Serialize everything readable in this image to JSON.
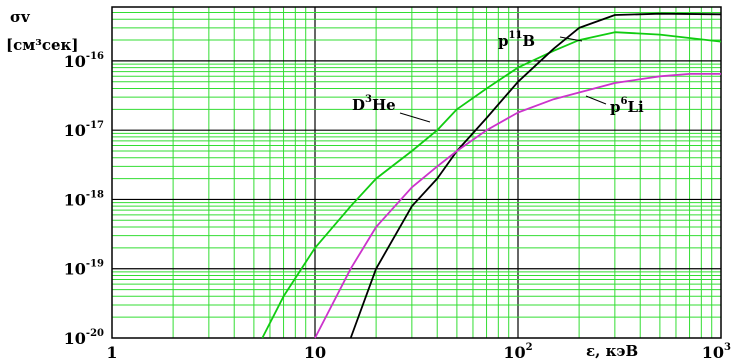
{
  "chart_data": {
    "type": "line",
    "title": "",
    "ylabel_line1": "σv",
    "ylabel_line2": "[см³сек]",
    "xlabel": "ε, кэВ",
    "xscale": "log",
    "yscale": "log",
    "xlim": [
      1,
      1000
    ],
    "ylim": [
      1e-20,
      6e-16
    ],
    "grid": true,
    "grid_color": "#33dd33",
    "x_ticks": [
      {
        "value": 1,
        "base": "1",
        "exp": ""
      },
      {
        "value": 10,
        "base": "10",
        "exp": ""
      },
      {
        "value": 100,
        "base": "10",
        "exp": "2"
      },
      {
        "value": 1000,
        "base": "10",
        "exp": "3"
      }
    ],
    "y_ticks": [
      {
        "value": 1e-20,
        "base": "10",
        "exp": "-20"
      },
      {
        "value": 1e-19,
        "base": "10",
        "exp": "-19"
      },
      {
        "value": 1e-18,
        "base": "10",
        "exp": "-18"
      },
      {
        "value": 1e-17,
        "base": "10",
        "exp": "-17"
      },
      {
        "value": 1e-16,
        "base": "10",
        "exp": "-16"
      }
    ],
    "series": [
      {
        "name": "D³He",
        "label_main": "D",
        "label_sup": "3",
        "label_tail": "He",
        "color": "#11cc11",
        "x": [
          5.5,
          7,
          10,
          15,
          20,
          30,
          40,
          50,
          70,
          100,
          150,
          200,
          300,
          500,
          1000
        ],
        "y": [
          1e-20,
          4e-20,
          2e-19,
          8e-19,
          2e-18,
          5e-18,
          1e-17,
          2e-17,
          4e-17,
          8e-17,
          1.4e-16,
          2e-16,
          2.6e-16,
          2.4e-16,
          1.9e-16
        ]
      },
      {
        "name": "p¹¹B",
        "label_main": "p",
        "label_sup": "11",
        "label_tail": "B",
        "color": "#000000",
        "x": [
          15,
          20,
          30,
          40,
          50,
          70,
          100,
          150,
          200,
          300,
          500,
          1000
        ],
        "y": [
          1e-20,
          1e-19,
          8e-19,
          2e-18,
          5e-18,
          1.5e-17,
          5e-17,
          1.5e-16,
          3e-16,
          4.6e-16,
          4.8e-16,
          4.7e-16
        ]
      },
      {
        "name": "p⁶Li",
        "label_main": "p",
        "label_sup": "6",
        "label_tail": "Li",
        "color": "#cc33cc",
        "x": [
          10,
          15,
          20,
          30,
          40,
          50,
          70,
          100,
          150,
          200,
          300,
          500,
          700,
          1000
        ],
        "y": [
          1e-20,
          1e-19,
          4e-19,
          1.5e-18,
          3e-18,
          5e-18,
          1e-17,
          1.8e-17,
          2.8e-17,
          3.5e-17,
          4.8e-17,
          6e-17,
          6.5e-17,
          6.5e-17
        ]
      }
    ]
  }
}
